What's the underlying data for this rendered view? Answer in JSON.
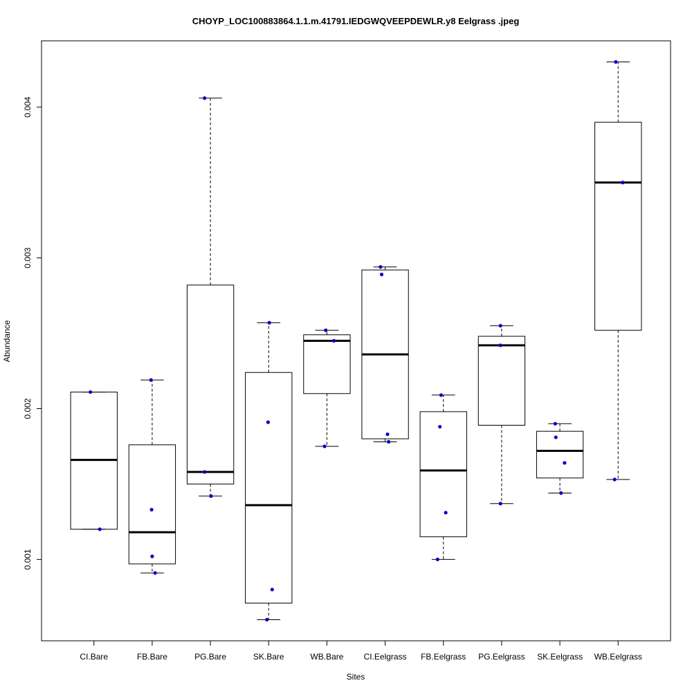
{
  "chart_data": {
    "type": "boxplot",
    "title": "CHOYP_LOC100883864.1.1.m.41791.IEDGWQVEEPDEWLR.y8 Eelgrass .jpeg",
    "xlabel": "Sites",
    "ylabel": "Abundance",
    "ylim": [
      0.00046,
      0.00444
    ],
    "yticks": [
      0.001,
      0.002,
      0.003,
      0.004
    ],
    "ytick_labels": [
      "0.001",
      "0.002",
      "0.003",
      "0.004"
    ],
    "colors": {
      "points": "#0000cc",
      "box": "#000000",
      "median": "#000000"
    },
    "categories": [
      "CI.Bare",
      "FB.Bare",
      "PG.Bare",
      "SK.Bare",
      "WB.Bare",
      "CI.Eelgrass",
      "FB.Eelgrass",
      "PG.Eelgrass",
      "SK.Eelgrass",
      "WB.Eelgrass"
    ],
    "boxes": [
      {
        "q1": 0.0012,
        "median": 0.00166,
        "q3": 0.00211,
        "whisker_low": 0.0012,
        "whisker_high": 0.00211
      },
      {
        "q1": 0.00097,
        "median": 0.00118,
        "q3": 0.00176,
        "whisker_low": 0.00091,
        "whisker_high": 0.00219
      },
      {
        "q1": 0.0015,
        "median": 0.00158,
        "q3": 0.00282,
        "whisker_low": 0.00142,
        "whisker_high": 0.00406
      },
      {
        "q1": 0.00071,
        "median": 0.00136,
        "q3": 0.00224,
        "whisker_low": 0.0006,
        "whisker_high": 0.00257
      },
      {
        "q1": 0.0021,
        "median": 0.00245,
        "q3": 0.00249,
        "whisker_low": 0.00175,
        "whisker_high": 0.00252
      },
      {
        "q1": 0.0018,
        "median": 0.00236,
        "q3": 0.00292,
        "whisker_low": 0.00178,
        "whisker_high": 0.00294
      },
      {
        "q1": 0.00115,
        "median": 0.00159,
        "q3": 0.00198,
        "whisker_low": 0.001,
        "whisker_high": 0.00209
      },
      {
        "q1": 0.00189,
        "median": 0.00242,
        "q3": 0.00248,
        "whisker_low": 0.00137,
        "whisker_high": 0.00255
      },
      {
        "q1": 0.00154,
        "median": 0.00172,
        "q3": 0.00185,
        "whisker_low": 0.00144,
        "whisker_high": 0.0019
      },
      {
        "q1": 0.00252,
        "median": 0.0035,
        "q3": 0.0039,
        "whisker_low": 0.00153,
        "whisker_high": 0.0043
      }
    ],
    "points": [
      {
        "category": 0,
        "offset": -0.06,
        "y": 0.00211
      },
      {
        "category": 0,
        "offset": 0.1,
        "y": 0.0012
      },
      {
        "category": 1,
        "offset": -0.02,
        "y": 0.00219
      },
      {
        "category": 1,
        "offset": -0.01,
        "y": 0.00133
      },
      {
        "category": 1,
        "offset": 0.0,
        "y": 0.00102
      },
      {
        "category": 1,
        "offset": 0.05,
        "y": 0.00091
      },
      {
        "category": 2,
        "offset": -0.1,
        "y": 0.00406
      },
      {
        "category": 2,
        "offset": -0.1,
        "y": 0.00158
      },
      {
        "category": 2,
        "offset": 0.01,
        "y": 0.00142
      },
      {
        "category": 3,
        "offset": 0.01,
        "y": 0.00257
      },
      {
        "category": 3,
        "offset": -0.01,
        "y": 0.00191
      },
      {
        "category": 3,
        "offset": 0.06,
        "y": 0.0008
      },
      {
        "category": 3,
        "offset": -0.03,
        "y": 0.0006
      },
      {
        "category": 4,
        "offset": -0.02,
        "y": 0.00252
      },
      {
        "category": 4,
        "offset": 0.12,
        "y": 0.00245
      },
      {
        "category": 4,
        "offset": -0.04,
        "y": 0.00175
      },
      {
        "category": 5,
        "offset": -0.08,
        "y": 0.00294
      },
      {
        "category": 5,
        "offset": -0.06,
        "y": 0.00289
      },
      {
        "category": 5,
        "offset": 0.04,
        "y": 0.00183
      },
      {
        "category": 5,
        "offset": 0.06,
        "y": 0.00178
      },
      {
        "category": 6,
        "offset": -0.04,
        "y": 0.00209
      },
      {
        "category": 6,
        "offset": -0.06,
        "y": 0.00188
      },
      {
        "category": 6,
        "offset": 0.04,
        "y": 0.00131
      },
      {
        "category": 6,
        "offset": -0.1,
        "y": 0.001
      },
      {
        "category": 7,
        "offset": -0.02,
        "y": 0.00255
      },
      {
        "category": 7,
        "offset": -0.02,
        "y": 0.00242
      },
      {
        "category": 7,
        "offset": -0.02,
        "y": 0.00137
      },
      {
        "category": 8,
        "offset": -0.08,
        "y": 0.0019
      },
      {
        "category": 8,
        "offset": -0.07,
        "y": 0.00181
      },
      {
        "category": 8,
        "offset": 0.08,
        "y": 0.00164
      },
      {
        "category": 8,
        "offset": 0.02,
        "y": 0.00144
      },
      {
        "category": 9,
        "offset": -0.04,
        "y": 0.0043
      },
      {
        "category": 9,
        "offset": 0.08,
        "y": 0.0035
      },
      {
        "category": 9,
        "offset": -0.06,
        "y": 0.00153
      }
    ]
  }
}
